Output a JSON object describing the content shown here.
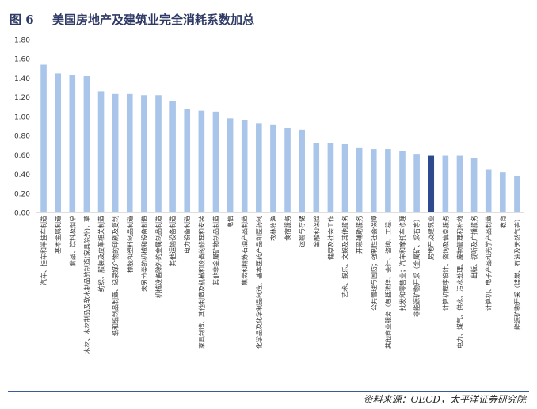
{
  "figure": {
    "label": "图 6",
    "title": "美国房地产及建筑业完全消耗系数加总",
    "source": "资料来源：OECD，太平洋证券研究院"
  },
  "colors": {
    "bar": "#a9c6ea",
    "highlight": "#2e4a8e",
    "axis": "#bfbfbf",
    "text": "#333333"
  },
  "chart_data": {
    "type": "bar",
    "title": "",
    "xlabel": "",
    "ylabel": "",
    "ylim": [
      0,
      1.8
    ],
    "yticks": [
      "0.00",
      "0.20",
      "0.40",
      "0.60",
      "0.80",
      "1.00",
      "1.20",
      "1.40",
      "1.60",
      "1.80"
    ],
    "grid": false,
    "legend": "none",
    "highlight_category": "房地产及建筑业",
    "categories": [
      "汽车、挂车和半挂车制造",
      "基本金属制造",
      "食品、饮料及烟草",
      "木材、木材制品及软木制品的制造(家具除外)，草",
      "纺织、服装及皮革相关制造",
      "纸和纸制品制造、记录媒介物的印刷及复制",
      "橡胶和塑料制品制造",
      "未另分类的机械和设备制造",
      "机械设备除外的金属制品制造",
      "其他运输设备制造",
      "电力设备制造",
      "家具制造、其他制造及机械和设备的修理和安装",
      "其他非金属矿物制品制造",
      "电信",
      "焦炭和精炼石油产品制造",
      "化学品及化学制品制造、基本医药产品和医药制",
      "农林牧渔",
      "食宿服务",
      "运输与存储",
      "金融和保险",
      "健康及社会工作",
      "艺术、娱乐、文娱及其他服务",
      "开采辅助服务",
      "公共管理与国防；强制性社会保障",
      "其他商业服务（包括法律、会计、咨询、工程、",
      "批发和零售业；汽车和摩托车修理",
      "非能源矿物开采（金属矿、采石等）",
      "房地产及建筑业",
      "计算机程序设计、咨询及信息服务",
      "电力、煤气、供水、污水处理、废物管理和补救",
      "出版、视听及广播服务",
      "计算机、电子产品和光学产品制造",
      "教育",
      "能源矿物开采（煤炭、石油及天然气等）"
    ],
    "values": [
      1.54,
      1.45,
      1.43,
      1.42,
      1.26,
      1.24,
      1.24,
      1.22,
      1.22,
      1.16,
      1.08,
      1.06,
      1.05,
      0.98,
      0.96,
      0.93,
      0.91,
      0.88,
      0.86,
      0.72,
      0.72,
      0.71,
      0.67,
      0.66,
      0.66,
      0.64,
      0.61,
      0.59,
      0.59,
      0.59,
      0.57,
      0.45,
      0.42,
      0.38
    ]
  }
}
